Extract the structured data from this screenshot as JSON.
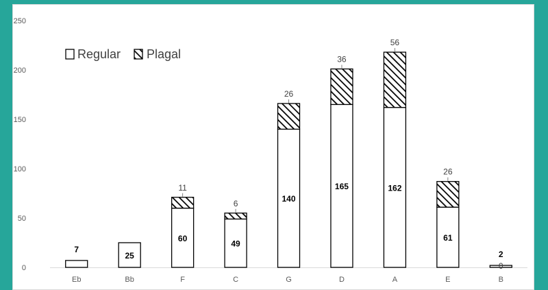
{
  "chart_data": {
    "type": "bar",
    "stacked": true,
    "categories": [
      "Eb",
      "Bb",
      "F",
      "C",
      "G",
      "D",
      "A",
      "E",
      "B"
    ],
    "series": [
      {
        "name": "Regular",
        "values": [
          7,
          25,
          60,
          49,
          140,
          165,
          162,
          61,
          2
        ]
      },
      {
        "name": "Plagal",
        "values": [
          0,
          0,
          11,
          6,
          26,
          36,
          56,
          26,
          0
        ]
      }
    ],
    "data_labels": {
      "Regular": [
        "7",
        "25",
        "60",
        "49",
        "140",
        "165",
        "162",
        "61",
        "2"
      ],
      "Plagal": [
        "",
        "",
        "11",
        "6",
        "26",
        "36",
        "56",
        "26",
        "0"
      ]
    },
    "ylim": [
      0,
      250
    ],
    "yticks": [
      0,
      50,
      100,
      150,
      200,
      250
    ],
    "grid": false,
    "legend": "top-left",
    "colors": {
      "regular_fill": "#ffffff",
      "plagal_hatch": "#000000",
      "frame_bg": "#26a69a"
    }
  }
}
